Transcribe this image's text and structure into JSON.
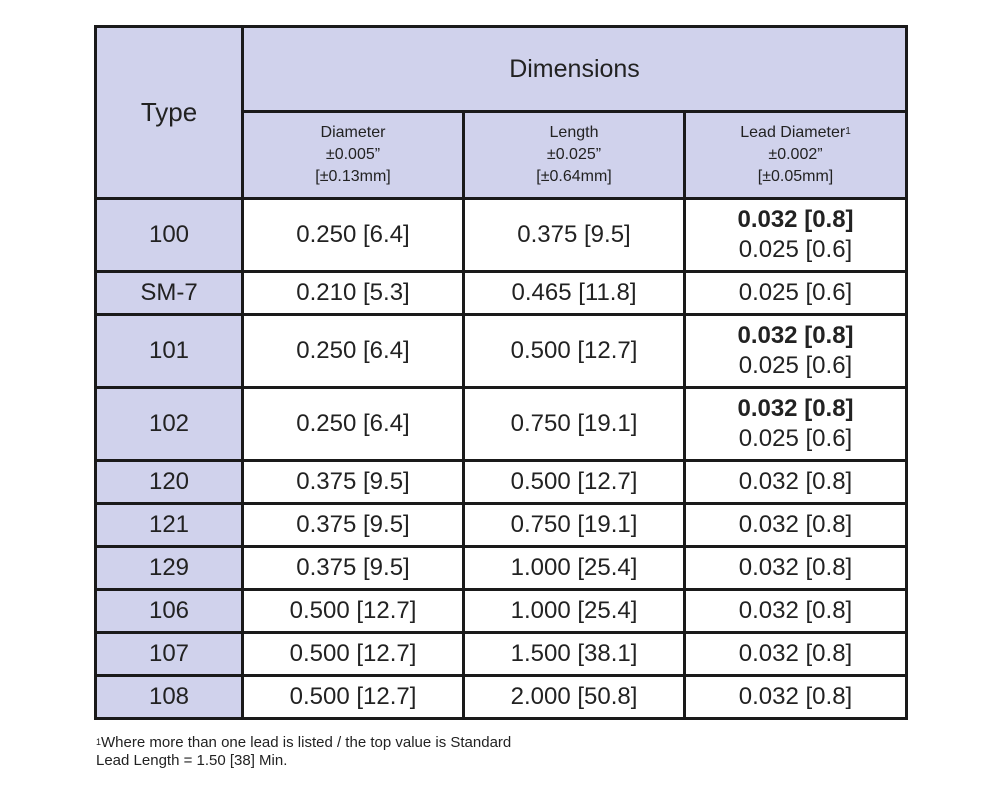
{
  "table": {
    "header": {
      "type_label": "Type",
      "group_label": "Dimensions",
      "columns": [
        {
          "label": "Diameter",
          "footnote": "",
          "tol_in": "±0.005”",
          "tol_mm": "[±0.13mm]"
        },
        {
          "label": "Length",
          "footnote": "",
          "tol_in": "±0.025”",
          "tol_mm": "[±0.64mm]"
        },
        {
          "label": "Lead Diameter",
          "footnote": "1",
          "tol_in": "±0.002”",
          "tol_mm": "[±0.05mm]"
        }
      ]
    },
    "rows": [
      {
        "type": "100",
        "diameter": "0.250 [6.4]",
        "length": "0.375 [9.5]",
        "lead_standard": "0.032 [0.8]",
        "lead_alt": "0.025 [0.6]"
      },
      {
        "type": "SM-7",
        "diameter": "0.210 [5.3]",
        "length": "0.465 [11.8]",
        "lead_standard": "",
        "lead_alt": "0.025 [0.6]"
      },
      {
        "type": "101",
        "diameter": "0.250 [6.4]",
        "length": "0.500 [12.7]",
        "lead_standard": "0.032 [0.8]",
        "lead_alt": "0.025 [0.6]"
      },
      {
        "type": "102",
        "diameter": "0.250 [6.4]",
        "length": "0.750 [19.1]",
        "lead_standard": "0.032 [0.8]",
        "lead_alt": "0.025 [0.6]"
      },
      {
        "type": "120",
        "diameter": "0.375 [9.5]",
        "length": "0.500 [12.7]",
        "lead_standard": "",
        "lead_alt": "0.032 [0.8]"
      },
      {
        "type": "121",
        "diameter": "0.375 [9.5]",
        "length": "0.750 [19.1]",
        "lead_standard": "",
        "lead_alt": "0.032 [0.8]"
      },
      {
        "type": "129",
        "diameter": "0.375 [9.5]",
        "length": "1.000 [25.4]",
        "lead_standard": "",
        "lead_alt": "0.032 [0.8]"
      },
      {
        "type": "106",
        "diameter": "0.500 [12.7]",
        "length": "1.000 [25.4]",
        "lead_standard": "",
        "lead_alt": "0.032 [0.8]"
      },
      {
        "type": "107",
        "diameter": "0.500 [12.7]",
        "length": "1.500 [38.1]",
        "lead_standard": "",
        "lead_alt": "0.032 [0.8]"
      },
      {
        "type": "108",
        "diameter": "0.500 [12.7]",
        "length": "2.000 [50.8]",
        "lead_standard": "",
        "lead_alt": "0.032 [0.8]"
      }
    ]
  },
  "footnote": {
    "marker": "1",
    "line1": "Where more than one lead is listed / the top value is Standard",
    "line2": "Lead Length = 1.50 [38] Min."
  },
  "colors": {
    "header_fill": "#d0d2ec",
    "border": "#1a1a1a"
  }
}
